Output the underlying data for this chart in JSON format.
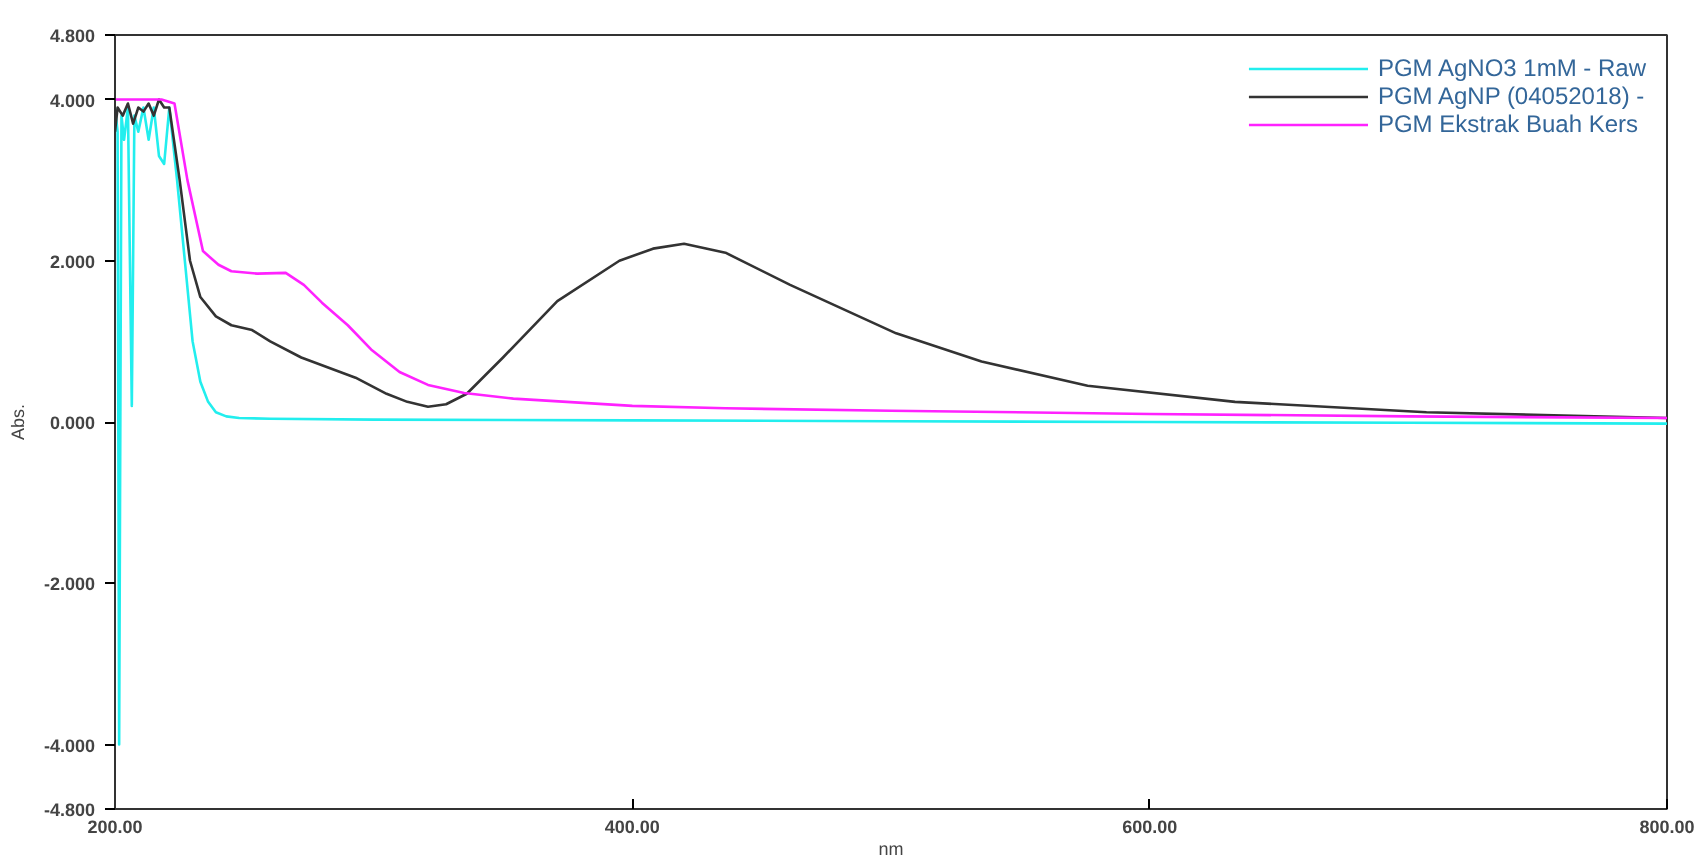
{
  "chart_data": {
    "type": "line",
    "xlabel": "nm",
    "ylabel": "Abs.",
    "xlim": [
      200,
      800
    ],
    "ylim": [
      -4.8,
      4.8
    ],
    "xticks": [
      {
        "value": 200,
        "label": "200.00"
      },
      {
        "value": 400,
        "label": "400.00"
      },
      {
        "value": 600,
        "label": "600.00"
      },
      {
        "value": 800,
        "label": "800.00"
      }
    ],
    "yticks": [
      {
        "value": -4.8,
        "label": "-4.800"
      },
      {
        "value": -4,
        "label": "-4.000"
      },
      {
        "value": -2,
        "label": "-2.000"
      },
      {
        "value": 0,
        "label": "0.000"
      },
      {
        "value": 2,
        "label": "2.000"
      },
      {
        "value": 4,
        "label": "4.000"
      },
      {
        "value": 4.8,
        "label": "4.800"
      }
    ],
    "grid": false,
    "legend": "top right",
    "line_style": "solid",
    "marker": "none",
    "series": [
      {
        "name": "PGM AgNO3 1mM - Raw",
        "color": "#22eeee",
        "x": [
          200,
          201,
          201.6,
          202.5,
          203.5,
          205,
          206.5,
          207.5,
          209,
          211,
          213,
          215,
          217,
          219,
          221,
          224,
          227,
          230,
          233,
          236,
          239,
          243,
          248,
          260,
          300,
          400,
          500,
          600,
          700,
          800
        ],
        "values": [
          3.9,
          3.6,
          -4.0,
          3.8,
          3.5,
          3.9,
          0.2,
          3.8,
          3.6,
          3.9,
          3.5,
          3.9,
          3.3,
          3.2,
          3.9,
          3.0,
          2.0,
          1.0,
          0.5,
          0.25,
          0.12,
          0.07,
          0.05,
          0.04,
          0.03,
          0.02,
          0.01,
          0.0,
          -0.01,
          -0.02
        ]
      },
      {
        "name": "PGM AgNP (04052018) -",
        "color": "#333333",
        "x": [
          200,
          201,
          203,
          205,
          207,
          209,
          211,
          213,
          215,
          217,
          219,
          221,
          225,
          229,
          233,
          239,
          245,
          253,
          260,
          272,
          293,
          305,
          313,
          321,
          328,
          336,
          350,
          371,
          395,
          408,
          420,
          436,
          461,
          502,
          535,
          576,
          633,
          707,
          760,
          800
        ],
        "values": [
          3.6,
          3.9,
          3.8,
          3.95,
          3.7,
          3.9,
          3.85,
          3.95,
          3.8,
          4.0,
          3.9,
          3.9,
          3.0,
          2.0,
          1.55,
          1.31,
          1.2,
          1.14,
          1.0,
          0.8,
          0.55,
          0.35,
          0.25,
          0.19,
          0.22,
          0.35,
          0.8,
          1.5,
          2.0,
          2.15,
          2.21,
          2.1,
          1.7,
          1.1,
          0.75,
          0.45,
          0.25,
          0.12,
          0.08,
          0.05
        ]
      },
      {
        "name": "PGM Ekstrak Buah Kers",
        "color": "#ff22ff",
        "x": [
          200,
          210,
          218,
          223,
          228,
          234,
          240,
          245,
          255,
          266,
          273,
          280,
          290,
          299,
          310,
          321,
          335,
          354,
          400,
          436,
          500,
          600,
          700,
          800
        ],
        "values": [
          4.0,
          4.0,
          4.0,
          3.95,
          3.0,
          2.12,
          1.95,
          1.87,
          1.84,
          1.85,
          1.7,
          1.48,
          1.2,
          0.9,
          0.62,
          0.46,
          0.36,
          0.29,
          0.2,
          0.17,
          0.14,
          0.1,
          0.07,
          0.05
        ]
      }
    ]
  }
}
